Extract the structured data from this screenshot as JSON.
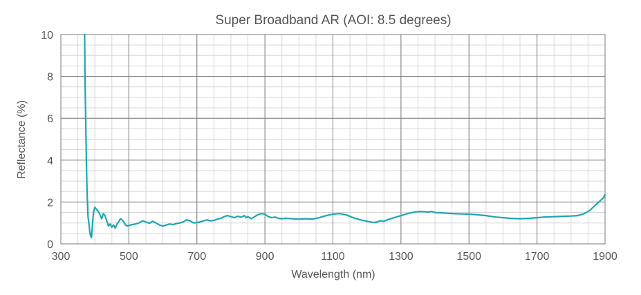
{
  "chart_data": {
    "type": "line",
    "title": "Super Broadband AR (AOI: 8.5 degrees)",
    "xlabel": "Wavelength (nm)",
    "ylabel": "Reflectance (%)",
    "xlim": [
      300,
      1900
    ],
    "ylim": [
      0,
      10
    ],
    "x_ticks": [
      300,
      500,
      700,
      900,
      1100,
      1300,
      1500,
      1700,
      1900
    ],
    "y_ticks": [
      0,
      2,
      4,
      6,
      8,
      10
    ],
    "grid": true,
    "line_color": "#1aa7b3",
    "series": [
      {
        "x": [
          370,
          371,
          373,
          375,
          377,
          380,
          383,
          385,
          387,
          390,
          393,
          396,
          400,
          405,
          410,
          415,
          420,
          425,
          430,
          435,
          440,
          445,
          450,
          455,
          460,
          465,
          470,
          475,
          480,
          485,
          490,
          495,
          500,
          510,
          520,
          530,
          540,
          550,
          560,
          570,
          580,
          590,
          600,
          610,
          620,
          630,
          640,
          650,
          660,
          670,
          680,
          690,
          700,
          710,
          720,
          730,
          740,
          750,
          760,
          770,
          780,
          790,
          800,
          810,
          820,
          830,
          840,
          845,
          850,
          860,
          870,
          880,
          890,
          900,
          910,
          920,
          930,
          940,
          950,
          960,
          980,
          1000,
          1020,
          1040,
          1060,
          1080,
          1100,
          1120,
          1140,
          1160,
          1180,
          1200,
          1210,
          1220,
          1230,
          1240,
          1250,
          1260,
          1280,
          1300,
          1320,
          1340,
          1360,
          1380,
          1390,
          1400,
          1420,
          1450,
          1480,
          1500,
          1520,
          1550,
          1580,
          1600,
          1620,
          1650,
          1680,
          1700,
          1720,
          1750,
          1780,
          1800,
          1820,
          1840,
          1855,
          1865,
          1875,
          1885,
          1895,
          1900
        ],
        "y": [
          10,
          8,
          6,
          4,
          2.5,
          1.3,
          0.9,
          0.6,
          0.4,
          0.3,
          0.9,
          1.5,
          1.75,
          1.65,
          1.55,
          1.4,
          1.2,
          1.45,
          1.35,
          1.1,
          0.85,
          0.95,
          0.8,
          0.9,
          0.75,
          0.95,
          1.05,
          1.2,
          1.15,
          1.05,
          0.9,
          0.85,
          0.88,
          0.92,
          0.95,
          1.0,
          1.1,
          1.05,
          0.98,
          1.08,
          1.0,
          0.9,
          0.85,
          0.9,
          0.95,
          0.92,
          0.97,
          1.0,
          1.05,
          1.15,
          1.1,
          1.0,
          1.02,
          1.05,
          1.1,
          1.15,
          1.1,
          1.12,
          1.18,
          1.22,
          1.3,
          1.35,
          1.3,
          1.25,
          1.32,
          1.28,
          1.35,
          1.25,
          1.3,
          1.2,
          1.3,
          1.4,
          1.45,
          1.42,
          1.3,
          1.25,
          1.28,
          1.22,
          1.2,
          1.22,
          1.2,
          1.18,
          1.2,
          1.18,
          1.25,
          1.35,
          1.42,
          1.45,
          1.38,
          1.25,
          1.15,
          1.08,
          1.05,
          1.02,
          1.05,
          1.1,
          1.08,
          1.15,
          1.25,
          1.35,
          1.45,
          1.52,
          1.55,
          1.52,
          1.55,
          1.5,
          1.48,
          1.45,
          1.43,
          1.42,
          1.4,
          1.35,
          1.28,
          1.25,
          1.22,
          1.2,
          1.22,
          1.25,
          1.28,
          1.3,
          1.32,
          1.33,
          1.35,
          1.45,
          1.6,
          1.75,
          1.9,
          2.05,
          2.2,
          2.35
        ]
      }
    ]
  }
}
